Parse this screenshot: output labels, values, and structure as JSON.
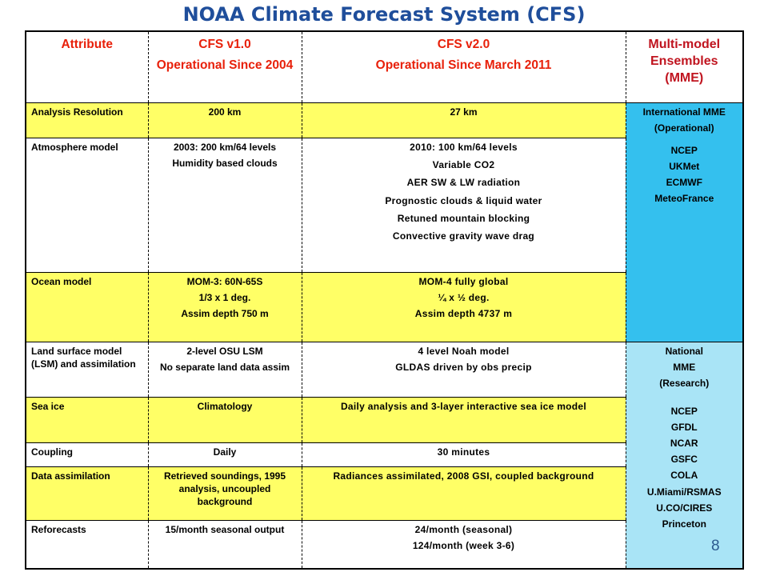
{
  "title": "NOAA Climate Forecast System (CFS)",
  "page_number": "8",
  "header": {
    "attribute": "Attribute",
    "v1_line1": "CFS v1.0",
    "v1_line2": "Operational Since 2004",
    "v2_line1": "CFS v2.0",
    "v2_line2": "Operational Since March 2011",
    "mme": "Multi-model Ensembles (MME)"
  },
  "rows": {
    "analysis": {
      "attribute": "Analysis Resolution",
      "v1": "200 km",
      "v2": "27 km"
    },
    "atmosphere": {
      "attribute": "Atmosphere model",
      "v1": [
        "2003: 200 km/64 levels",
        "Humidity based clouds"
      ],
      "v2": [
        "2010: 100 km/64 levels",
        "Variable CO2",
        "AER SW & LW radiation",
        "Prognostic clouds & liquid water",
        "Retuned mountain blocking",
        "Convective gravity wave drag"
      ]
    },
    "ocean": {
      "attribute": "Ocean model",
      "v1": [
        "MOM-3: 60N-65S",
        "1/3 x 1 deg.",
        "Assim depth 750 m"
      ],
      "v2": [
        "MOM-4 fully global",
        "¼ x ½ deg.",
        "Assim depth 4737 m"
      ]
    },
    "land": {
      "attribute": "Land surface model (LSM) and assimilation",
      "v1": [
        "2-level OSU LSM",
        "No separate land data assim"
      ],
      "v2": [
        "4 level Noah model",
        "GLDAS driven by obs precip"
      ]
    },
    "seaice": {
      "attribute": "Sea ice",
      "v1": "Climatology",
      "v2": "Daily analysis and 3-layer interactive sea ice model"
    },
    "coupling": {
      "attribute": "Coupling",
      "v1": "Daily",
      "v2": "30 minutes"
    },
    "assim": {
      "attribute": "Data assimilation",
      "v1": "Retrieved soundings, 1995 analysis, uncoupled background",
      "v2": "Radiances assimilated, 2008 GSI, coupled background"
    },
    "reforecasts": {
      "attribute": "Reforecasts",
      "v1": "15/month seasonal output",
      "v2": [
        "24/month (seasonal)",
        "124/month (week 3-6)"
      ]
    }
  },
  "international_mme": {
    "lines": [
      "International MME",
      "(Operational)"
    ],
    "members": [
      "NCEP",
      "UKMet",
      "ECMWF",
      "MeteoFrance"
    ]
  },
  "national_mme": {
    "lines": [
      "National",
      "MME",
      "(Research)"
    ],
    "members": [
      "NCEP",
      "GFDL",
      "NCAR",
      "GSFC",
      "COLA",
      "U.Miami/RSMAS",
      "U.CO/CIRES",
      "Princeton"
    ]
  },
  "colors": {
    "title": "#1f4e9b",
    "header_text": "#e8200a",
    "highlight_yellow": "#ffff66",
    "international_blue": "#34c0ee",
    "national_lightblue": "#a9e4f6"
  }
}
